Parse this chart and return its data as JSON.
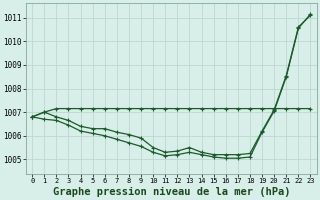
{
  "background_color": "#d8eee8",
  "grid_color": "#b8d4cc",
  "line_color": "#1a5c2a",
  "title": "Graphe pression niveau de la mer (hPa)",
  "title_fontsize": 7.5,
  "xlim": [
    -0.5,
    23.5
  ],
  "ylim": [
    1004.4,
    1011.6
  ],
  "yticks": [
    1005,
    1006,
    1007,
    1008,
    1009,
    1010,
    1011
  ],
  "xticks": [
    0,
    1,
    2,
    3,
    4,
    5,
    6,
    7,
    8,
    9,
    10,
    11,
    12,
    13,
    14,
    15,
    16,
    17,
    18,
    19,
    20,
    21,
    22,
    23
  ],
  "line1_x": [
    0,
    1,
    2,
    3,
    4,
    5,
    6,
    7,
    8,
    9,
    10,
    11,
    12,
    13,
    14,
    15,
    16,
    17,
    18,
    19,
    20,
    21,
    22,
    23
  ],
  "line1_y": [
    1006.8,
    1007.0,
    1007.15,
    1007.15,
    1007.15,
    1007.15,
    1007.15,
    1007.15,
    1007.15,
    1007.15,
    1007.15,
    1007.15,
    1007.15,
    1007.15,
    1007.15,
    1007.15,
    1007.15,
    1007.15,
    1007.15,
    1007.15,
    1007.15,
    1007.15,
    1007.15,
    1007.15
  ],
  "line2_x": [
    0,
    1,
    2,
    3,
    4,
    5,
    6,
    7,
    8,
    9,
    10,
    11,
    12,
    13,
    14,
    15,
    16,
    17,
    18,
    19,
    20,
    21,
    22,
    23
  ],
  "line2_y": [
    1006.8,
    1007.0,
    1006.8,
    1006.65,
    1006.4,
    1006.3,
    1006.3,
    1006.15,
    1006.05,
    1005.9,
    1005.5,
    1005.3,
    1005.35,
    1005.5,
    1005.3,
    1005.2,
    1005.2,
    1005.2,
    1005.25,
    1006.2,
    1007.1,
    1008.55,
    1010.6,
    1011.1
  ],
  "line3_x": [
    0,
    1,
    2,
    3,
    4,
    5,
    6,
    7,
    8,
    9,
    10,
    11,
    12,
    13,
    14,
    15,
    16,
    17,
    18,
    19,
    20,
    21,
    22,
    23
  ],
  "line3_y": [
    1006.8,
    1006.7,
    1006.65,
    1006.45,
    1006.2,
    1006.1,
    1006.0,
    1005.85,
    1005.7,
    1005.55,
    1005.3,
    1005.15,
    1005.2,
    1005.3,
    1005.2,
    1005.1,
    1005.05,
    1005.05,
    1005.1,
    1006.15,
    1007.05,
    1008.5,
    1010.55,
    1011.15
  ]
}
